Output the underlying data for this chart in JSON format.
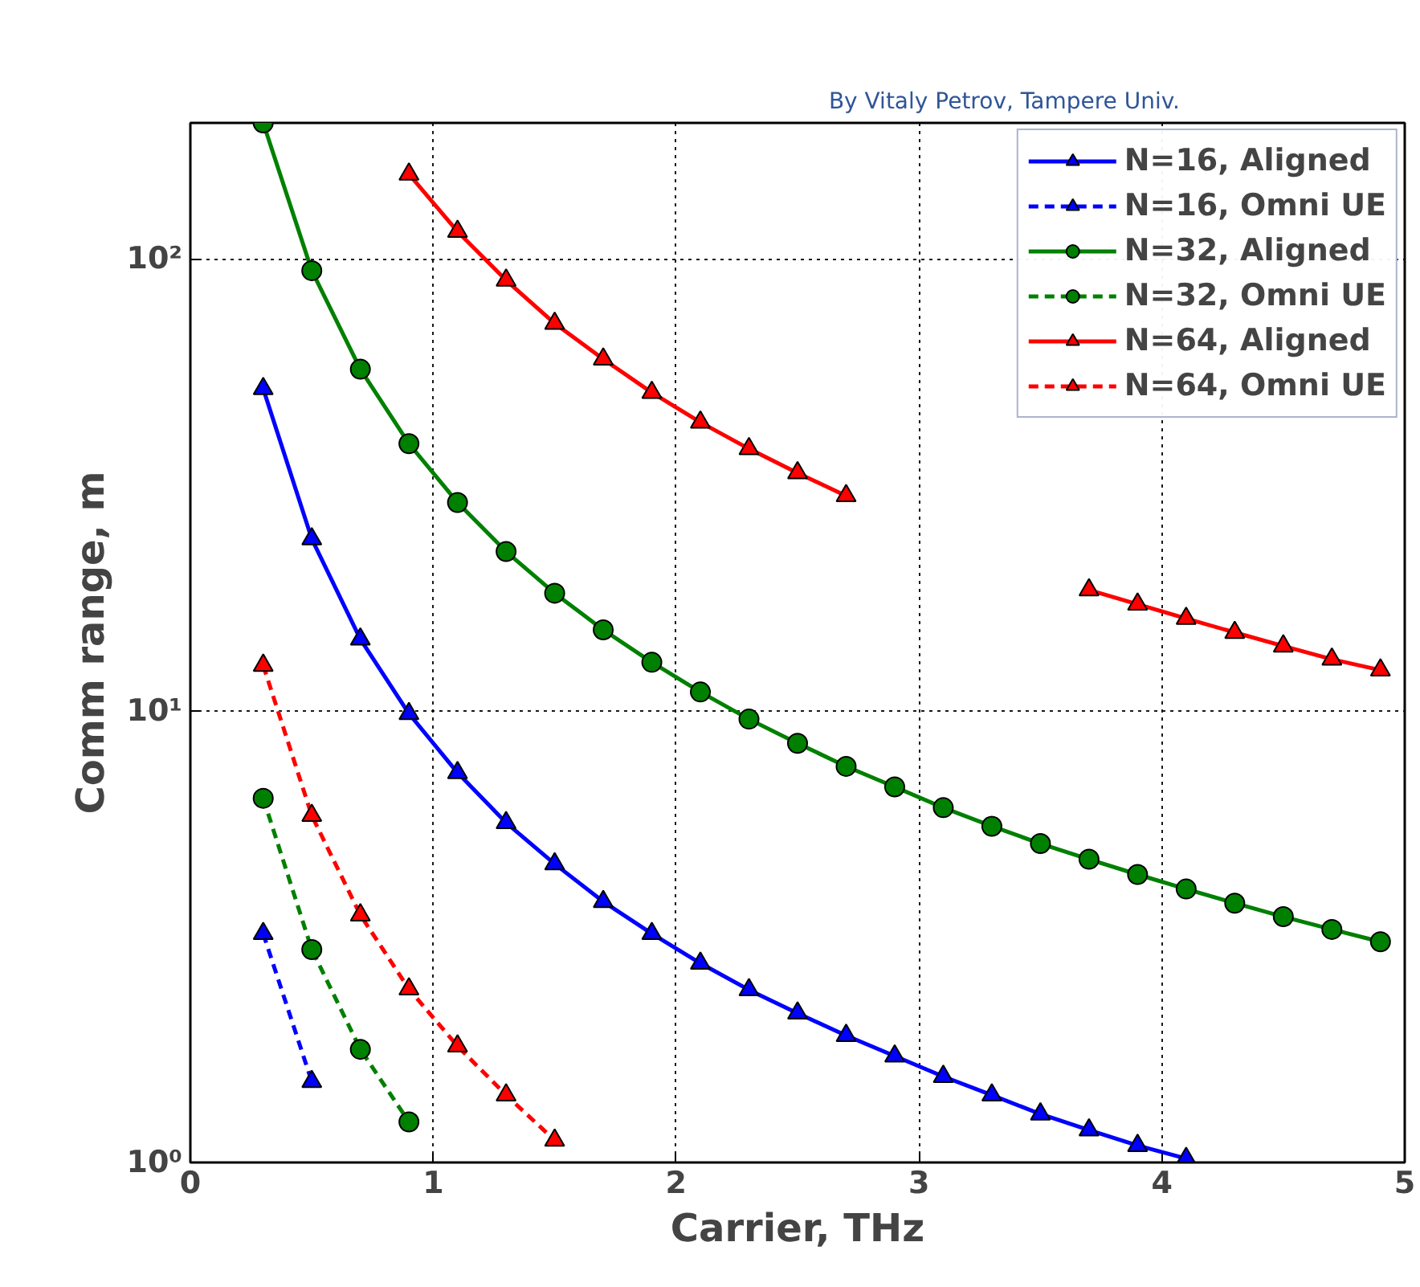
{
  "chart_data": {
    "type": "line",
    "xlabel": "Carrier, THz",
    "ylabel": "Comm range, m",
    "log": "y",
    "xlim": [
      0,
      5
    ],
    "ylim": [
      1,
      200
    ],
    "xticks": [
      0,
      1,
      2,
      3,
      4,
      5
    ],
    "yticks": [
      {
        "value": 1,
        "label": "10⁰"
      },
      {
        "value": 10,
        "label": "10¹"
      },
      {
        "value": 100,
        "label": "10²"
      }
    ],
    "grid": true,
    "legend": "top right",
    "annotations": [
      "By Vitaly Petrov, Tampere Univ."
    ],
    "series": [
      {
        "name": "N=16, Aligned",
        "color": "#0000ff",
        "marker": "triangle",
        "line_style": "solid",
        "x": [
          0.3,
          0.5,
          0.7,
          0.9,
          1.1,
          1.3,
          1.5,
          1.7,
          1.9,
          2.1,
          2.3,
          2.5,
          2.7,
          2.9,
          3.1,
          3.3,
          3.5,
          3.7,
          3.9,
          4.1
        ],
        "values": [
          51.6,
          24,
          14.4,
          9.85,
          7.29,
          5.65,
          4.58,
          3.78,
          3.21,
          2.76,
          2.41,
          2.14,
          1.91,
          1.72,
          1.55,
          1.41,
          1.28,
          1.18,
          1.09,
          1.02
        ]
      },
      {
        "name": "N=16, Omni UE",
        "color": "#0000ff",
        "marker": "triangle",
        "line_style": "dashed",
        "x": [
          0.3,
          0.5
        ],
        "values": [
          3.21,
          1.51
        ]
      },
      {
        "name": "N=32, Aligned",
        "color": "#008000",
        "marker": "circle",
        "line_style": "solid",
        "x": [
          0.3,
          0.5,
          0.7,
          0.9,
          1.1,
          1.3,
          1.5,
          1.7,
          1.9,
          2.1,
          2.3,
          2.5,
          2.7,
          2.9,
          3.1,
          3.3,
          3.5,
          3.7,
          3.9,
          4.1,
          4.3,
          4.5,
          4.7,
          4.9
        ],
        "values": [
          200,
          94.2,
          57,
          39,
          28.9,
          22.5,
          18.2,
          15.1,
          12.8,
          11.0,
          9.58,
          8.47,
          7.53,
          6.78,
          6.1,
          5.55,
          5.08,
          4.69,
          4.34,
          4.03,
          3.75,
          3.5,
          3.28,
          3.08
        ]
      },
      {
        "name": "N=32, Omni UE",
        "color": "#008000",
        "marker": "circle",
        "line_style": "dashed",
        "x": [
          0.3,
          0.5,
          0.7,
          0.9
        ],
        "values": [
          6.4,
          2.96,
          1.78,
          1.23
        ]
      },
      {
        "name": "N=64, Aligned",
        "color": "#ff0000",
        "marker": "triangle",
        "line_style": "solid",
        "x": [
          0.9,
          1.1,
          1.3,
          1.5,
          1.7,
          1.9,
          2.1,
          2.3,
          2.5,
          2.7,
          2.9,
          3.1,
          3.3,
          3.5,
          3.7,
          3.9,
          4.1,
          4.3,
          4.5,
          4.7,
          4.9
        ],
        "values": [
          154,
          115,
          89.7,
          72,
          60,
          50.6,
          43.5,
          38,
          33.6,
          29.9,
          null,
          null,
          null,
          null,
          18.5,
          17.2,
          16.0,
          14.9,
          13.9,
          13.0,
          12.3
        ]
      },
      {
        "name": "N=64, Omni UE",
        "color": "#ff0000",
        "marker": "triangle",
        "line_style": "dashed",
        "x": [
          0.3,
          0.5,
          0.7,
          0.9,
          1.1,
          1.3,
          1.5
        ],
        "values": [
          12.6,
          5.86,
          3.53,
          2.42,
          1.81,
          1.41,
          1.12
        ]
      }
    ]
  }
}
